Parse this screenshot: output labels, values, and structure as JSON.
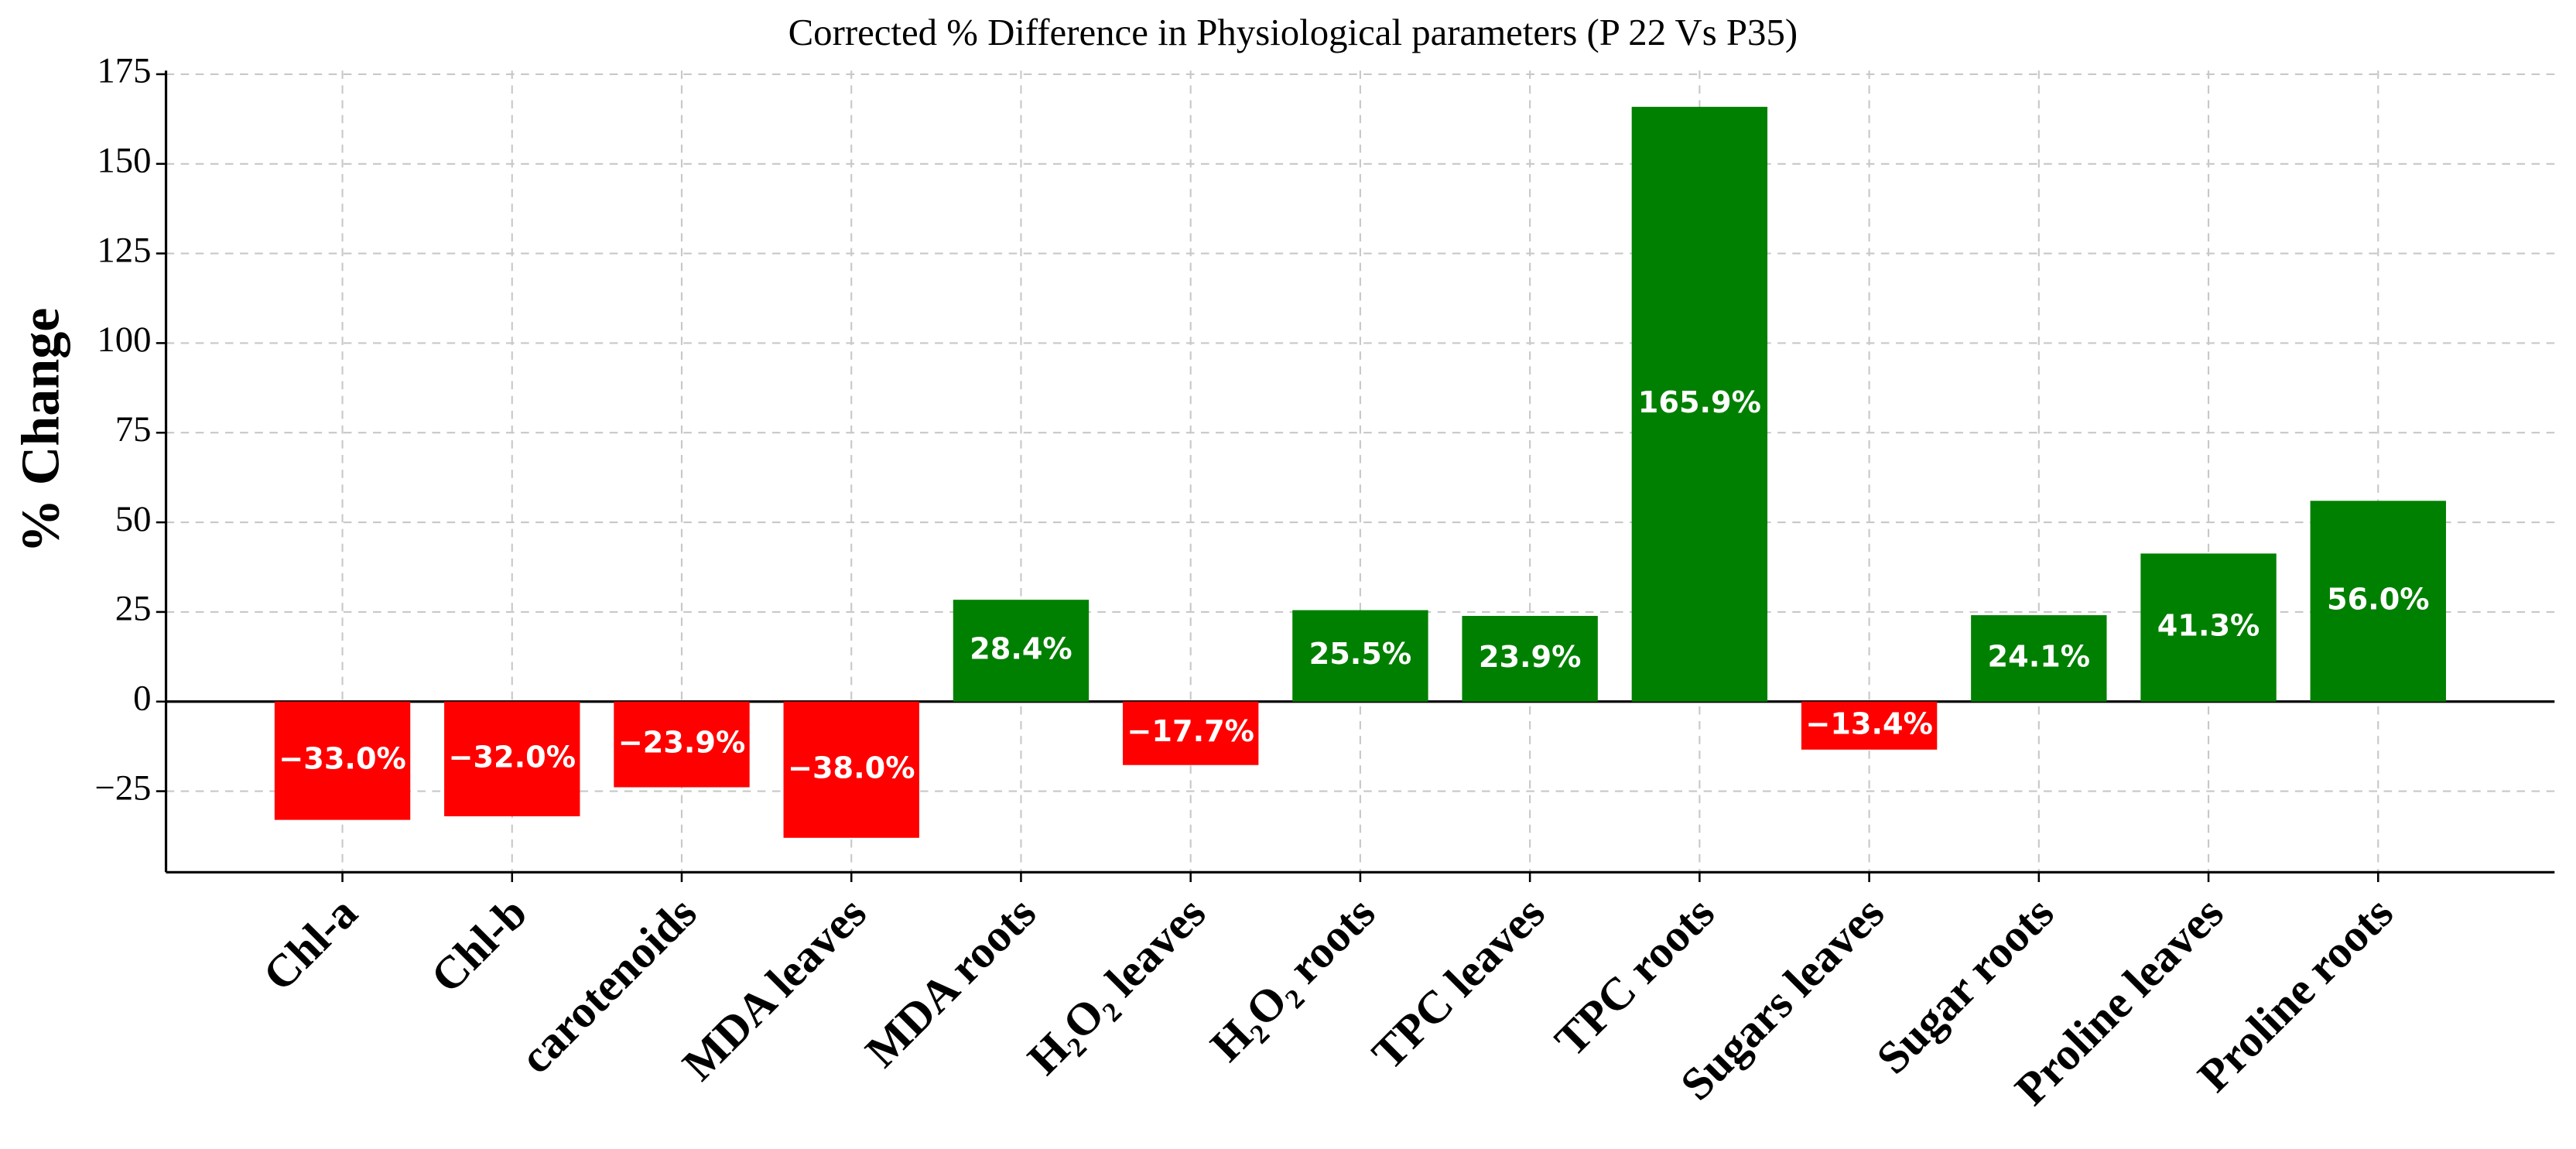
{
  "chart_data": {
    "type": "bar",
    "title": "Corrected % Difference in Physiological parameters  (P 22 Vs P35)",
    "y_label": "% Change",
    "categories": [
      "Chl-a",
      "Chl-b",
      "carotenoids",
      "MDA leaves",
      "MDA roots",
      "H₂O₂ leaves",
      "H₂O₂ roots",
      "TPC leaves",
      "TPC roots",
      "Sugars leaves",
      "Sugar roots",
      "Proline leaves",
      "Proline roots"
    ],
    "values": [
      -33.0,
      -32.0,
      -23.9,
      -38.0,
      28.4,
      -17.7,
      25.5,
      23.9,
      165.9,
      -13.4,
      24.1,
      41.3,
      56.0
    ],
    "value_labels": [
      "−33.0%",
      "−32.0%",
      "−23.9%",
      "−38.0%",
      "28.4%",
      "−17.7%",
      "25.5%",
      "23.9%",
      "165.9%",
      "−13.4%",
      "24.1%",
      "41.3%",
      "56.0%"
    ],
    "colors": [
      "#ff0000",
      "#ff0000",
      "#ff0000",
      "#ff0000",
      "#008000",
      "#ff0000",
      "#008000",
      "#008000",
      "#008000",
      "#ff0000",
      "#008000",
      "#008000",
      "#008000"
    ],
    "ylim": [
      -47.6,
      176
    ],
    "yticks": [
      {
        "value": -25,
        "label": "−25"
      },
      0,
      25,
      50,
      75,
      100,
      125,
      150,
      175
    ],
    "grid": true
  }
}
